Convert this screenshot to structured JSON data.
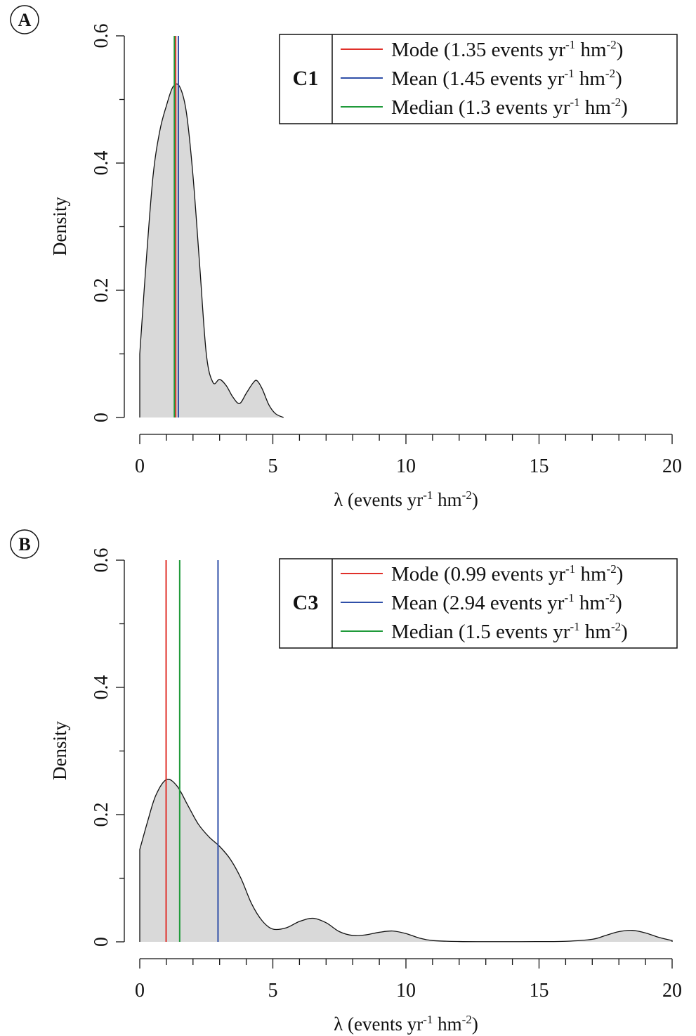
{
  "panels": [
    {
      "letter": "A",
      "tag": "C1",
      "title": "",
      "ylabel": "Density",
      "xlabel_main": "λ (events yr",
      "xlabel_exp1": "-1",
      "xlabel_mid": " hm",
      "xlabel_exp2": "-2",
      "xlabel_end": ")",
      "legend": [
        {
          "text": "Mode (1.35 events yr",
          "color": "#e0302a"
        },
        {
          "text": "Mean (1.45 events yr",
          "color": "#2f4fa8"
        },
        {
          "text": "Median (1.3 events yr",
          "color": "#1f9a3a"
        }
      ],
      "legend_unit_exp1": "-1",
      "legend_unit_mid": " hm",
      "legend_unit_exp2": "-2",
      "legend_unit_end": ")"
    },
    {
      "letter": "B",
      "tag": "C3",
      "title": "",
      "ylabel": "Density",
      "xlabel_main": "λ (events yr",
      "xlabel_exp1": "-1",
      "xlabel_mid": " hm",
      "xlabel_exp2": "-2",
      "xlabel_end": ")",
      "legend": [
        {
          "text": "Mode (0.99 events yr",
          "color": "#e0302a"
        },
        {
          "text": "Mean (2.94 events yr",
          "color": "#2f4fa8"
        },
        {
          "text": "Median (1.5 events yr",
          "color": "#1f9a3a"
        }
      ],
      "legend_unit_exp1": "-1",
      "legend_unit_mid": " hm",
      "legend_unit_exp2": "-2",
      "legend_unit_end": ")"
    }
  ],
  "chart_data": [
    {
      "type": "area",
      "panel": "A",
      "xlim": [
        0,
        20
      ],
      "ylim": [
        0,
        0.6
      ],
      "x_ticks": [
        0,
        5,
        10,
        15,
        20
      ],
      "y_ticks": [
        0,
        0.2,
        0.4,
        0.6
      ],
      "y_tick_labels": [
        "0",
        "0.2",
        "0.4",
        "0.6"
      ],
      "ylabel": "Density",
      "density": {
        "x": [
          0,
          0.25,
          0.5,
          0.75,
          1.0,
          1.25,
          1.5,
          1.75,
          2.0,
          2.25,
          2.5,
          2.75,
          3.0,
          3.25,
          3.5,
          3.75,
          4.0,
          4.25,
          4.4,
          4.6,
          4.85,
          5.1,
          5.4
        ],
        "y": [
          0.1,
          0.25,
          0.38,
          0.45,
          0.49,
          0.52,
          0.52,
          0.48,
          0.38,
          0.24,
          0.1,
          0.055,
          0.06,
          0.05,
          0.032,
          0.022,
          0.038,
          0.054,
          0.058,
          0.045,
          0.02,
          0.006,
          0.0
        ]
      },
      "vlines": [
        {
          "name": "Mode",
          "x": 1.35,
          "color": "#e0302a"
        },
        {
          "name": "Mean",
          "x": 1.45,
          "color": "#2f4fa8"
        },
        {
          "name": "Median",
          "x": 1.3,
          "color": "#1f9a3a"
        }
      ],
      "legend_position": "top-right"
    },
    {
      "type": "area",
      "panel": "B",
      "xlim": [
        0,
        20
      ],
      "ylim": [
        0,
        0.6
      ],
      "x_ticks": [
        0,
        5,
        10,
        15,
        20
      ],
      "y_ticks": [
        0,
        0.2,
        0.4,
        0.6
      ],
      "y_tick_labels": [
        "0",
        "0.2",
        "0.4",
        "0.6"
      ],
      "ylabel": "Density",
      "density": {
        "x": [
          0,
          0.3,
          0.6,
          1.0,
          1.4,
          1.8,
          2.2,
          2.6,
          3.0,
          3.4,
          3.8,
          4.2,
          4.6,
          5.0,
          5.5,
          6.0,
          6.5,
          7.0,
          7.5,
          8.0,
          8.5,
          9.0,
          9.5,
          10.0,
          10.5,
          11.0,
          12.0,
          13.0,
          14.0,
          15.0,
          16.0,
          17.0,
          17.5,
          18.0,
          18.5,
          19.0,
          19.5,
          20.0
        ],
        "y": [
          0.145,
          0.19,
          0.23,
          0.255,
          0.245,
          0.215,
          0.185,
          0.165,
          0.15,
          0.13,
          0.1,
          0.06,
          0.033,
          0.02,
          0.022,
          0.032,
          0.037,
          0.03,
          0.016,
          0.01,
          0.011,
          0.015,
          0.017,
          0.013,
          0.006,
          0.002,
          0.0005,
          0.0003,
          0.0003,
          0.0004,
          0.0008,
          0.004,
          0.01,
          0.016,
          0.018,
          0.014,
          0.007,
          0.002
        ]
      },
      "vlines": [
        {
          "name": "Mode",
          "x": 0.99,
          "color": "#e0302a"
        },
        {
          "name": "Mean",
          "x": 2.94,
          "color": "#2f4fa8"
        },
        {
          "name": "Median",
          "x": 1.5,
          "color": "#1f9a3a"
        }
      ],
      "legend_position": "top-right"
    }
  ]
}
